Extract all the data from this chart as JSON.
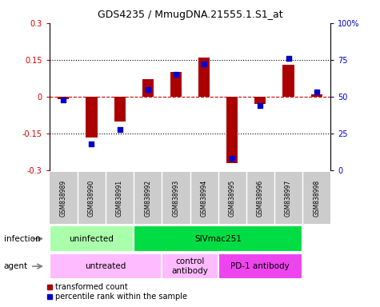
{
  "title": "GDS4235 / MmugDNA.21555.1.S1_at",
  "samples": [
    "GSM838989",
    "GSM838990",
    "GSM838991",
    "GSM838992",
    "GSM838993",
    "GSM838994",
    "GSM838995",
    "GSM838996",
    "GSM838997",
    "GSM838998"
  ],
  "transformed_count": [
    -0.01,
    -0.165,
    -0.1,
    0.07,
    0.1,
    0.16,
    -0.27,
    -0.03,
    0.13,
    0.01
  ],
  "percentile_rank": [
    48,
    18,
    28,
    55,
    65,
    72,
    8,
    44,
    76,
    53
  ],
  "ylim_left": [
    -0.3,
    0.3
  ],
  "ylim_right": [
    0,
    100
  ],
  "yticks_left": [
    -0.3,
    -0.15,
    0.0,
    0.15,
    0.3
  ],
  "ytick_labels_left": [
    "-0.3",
    "-0.15",
    "0",
    "0.15",
    "0.3"
  ],
  "yticks_right": [
    0,
    25,
    50,
    75,
    100
  ],
  "ytick_labels_right": [
    "0",
    "25",
    "50",
    "75",
    "100%"
  ],
  "hlines": [
    -0.15,
    0.15
  ],
  "bar_color": "#aa0000",
  "point_color": "#0000cc",
  "infection_groups": [
    {
      "label": "uninfected",
      "start": 0,
      "end": 3,
      "color": "#aaffaa"
    },
    {
      "label": "SIVmac251",
      "start": 3,
      "end": 9,
      "color": "#00dd44"
    }
  ],
  "agent_groups": [
    {
      "label": "untreated",
      "start": 0,
      "end": 4,
      "color": "#ffbbff"
    },
    {
      "label": "control\nantibody",
      "start": 4,
      "end": 6,
      "color": "#ffbbff"
    },
    {
      "label": "PD-1 antibody",
      "start": 6,
      "end": 9,
      "color": "#ee44ee"
    }
  ],
  "infection_label": "infection",
  "agent_label": "agent",
  "bg_color": "#ffffff",
  "zero_line_color": "#cc0000",
  "sample_bg_color": "#cccccc"
}
